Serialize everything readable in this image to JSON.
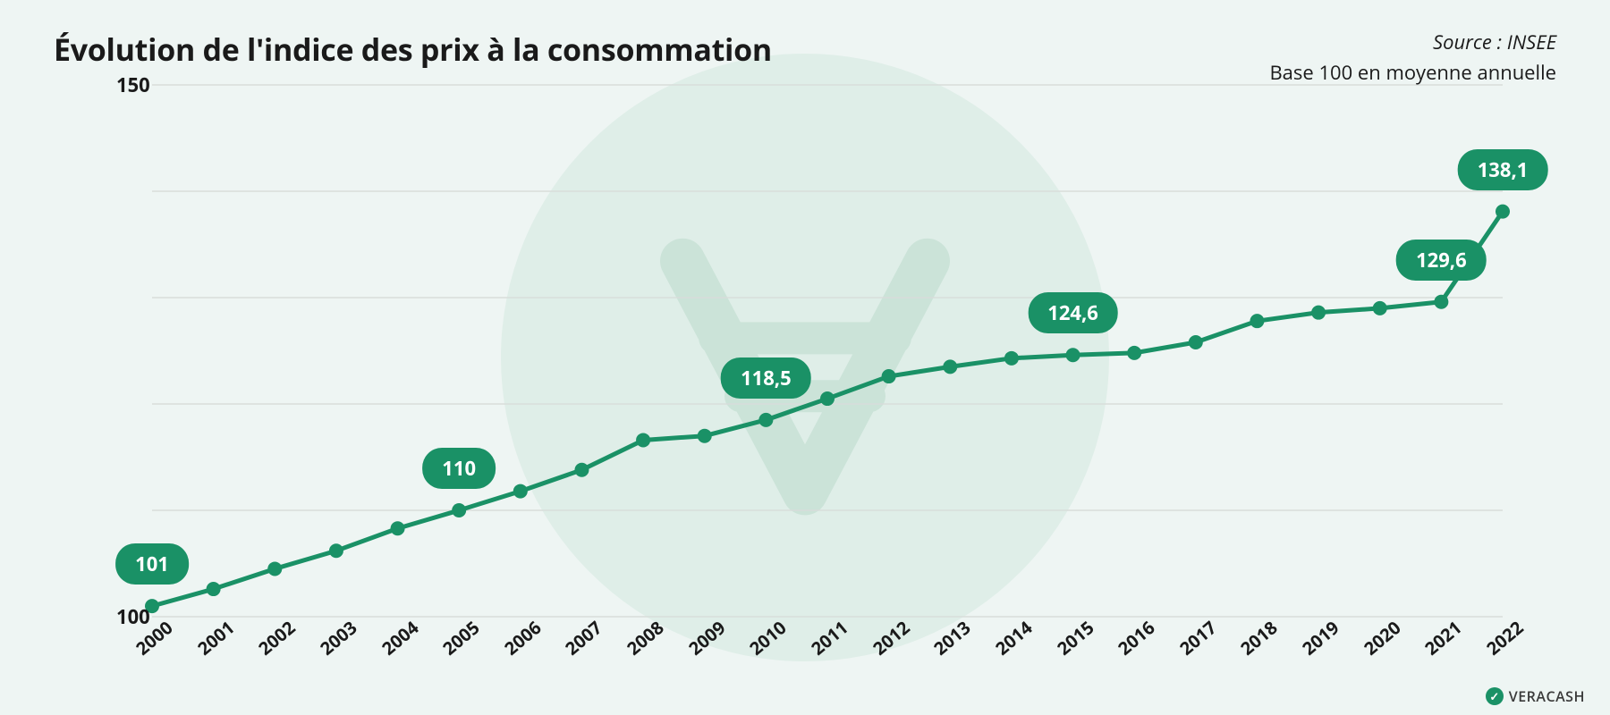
{
  "title": "Évolution de l'indice des prix à la consommation",
  "source": "Source : INSEE",
  "subtitle": "Base 100 en moyenne annuelle",
  "brand": "VERACASH",
  "chart": {
    "type": "line",
    "background_color": "#eef5f3",
    "watermark_circle_color": "#dfeee8",
    "watermark_symbol_color": "#c9e2d7",
    "line_color": "#1a9166",
    "line_width": 5,
    "marker_color": "#1a9166",
    "marker_radius": 8,
    "grid_color": "#d8ddda",
    "axis_font_color": "#1a1a1a",
    "axis_fontsize": 20,
    "ylim": [
      100,
      150
    ],
    "ytick_step": 10,
    "ytick_labels": [
      100,
      150
    ],
    "xlabels": [
      "2000",
      "2001",
      "2002",
      "2003",
      "2004",
      "2005",
      "2006",
      "2007",
      "2008",
      "2009",
      "2010",
      "2011",
      "2012",
      "2013",
      "2014",
      "2015",
      "2016",
      "2017",
      "2018",
      "2019",
      "2020",
      "2021",
      "2022"
    ],
    "values": [
      101,
      102.6,
      104.5,
      106.2,
      108.3,
      110,
      111.8,
      113.8,
      116.6,
      117,
      118.5,
      120.5,
      122.6,
      123.5,
      124.3,
      124.6,
      124.8,
      125.8,
      127.8,
      128.6,
      129,
      129.6,
      138.1
    ],
    "callouts": [
      {
        "index": 0,
        "label": "101"
      },
      {
        "index": 5,
        "label": "110"
      },
      {
        "index": 10,
        "label": "118,5"
      },
      {
        "index": 15,
        "label": "124,6"
      },
      {
        "index": 21,
        "label": "129,6"
      },
      {
        "index": 22,
        "label": "138,1"
      }
    ],
    "callout_bg": "#1a9166",
    "callout_text_color": "#ffffff",
    "callout_fontsize": 22,
    "xlabel_rotation_deg": -40
  }
}
